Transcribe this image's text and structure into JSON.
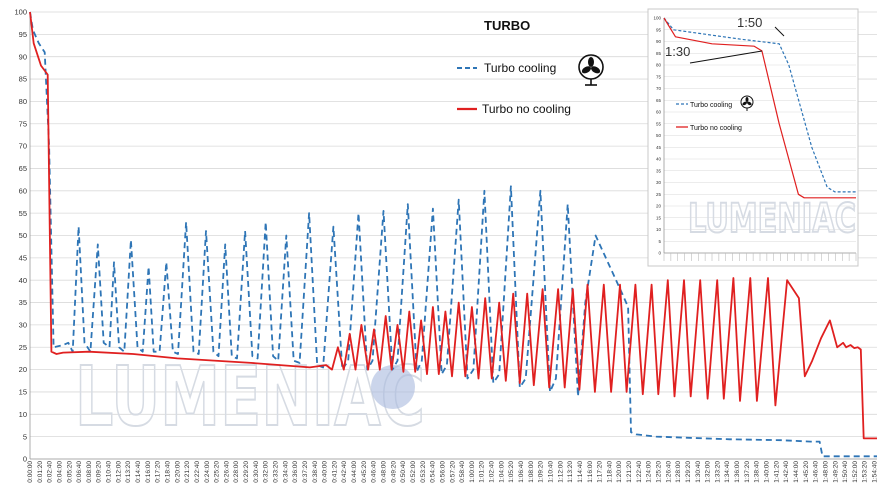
{
  "chart_data": [
    {
      "type": "line",
      "title": "TURBO",
      "ylim": [
        0,
        100
      ],
      "yticks": [
        0,
        5,
        10,
        15,
        20,
        25,
        30,
        35,
        40,
        45,
        50,
        55,
        60,
        65,
        70,
        75,
        80,
        85,
        90,
        95,
        100
      ],
      "xlim_minutes": [
        0,
        115
      ],
      "xticks": [
        "0:00:00",
        "0:01:20",
        "0:02:40",
        "0:04:00",
        "0:05:20",
        "0:06:40",
        "0:08:00",
        "0:09:20",
        "0:10:40",
        "0:12:00",
        "0:13:20",
        "0:14:40",
        "0:16:00",
        "0:17:20",
        "0:18:40",
        "0:20:00",
        "0:21:20",
        "0:22:40",
        "0:24:00",
        "0:25:20",
        "0:26:40",
        "0:28:00",
        "0:29:20",
        "0:30:40",
        "0:32:00",
        "0:33:20",
        "0:34:40",
        "0:36:00",
        "0:37:20",
        "0:38:40",
        "0:40:00",
        "0:41:20",
        "0:42:40",
        "0:44:00",
        "0:45:20",
        "0:46:40",
        "0:48:00",
        "0:49:20",
        "0:50:40",
        "0:52:00",
        "0:53:20",
        "0:54:40",
        "0:56:00",
        "0:57:20",
        "0:58:40",
        "1:00:00",
        "1:01:20",
        "1:02:40",
        "1:04:00",
        "1:05:20",
        "1:06:40",
        "1:08:00",
        "1:09:20",
        "1:10:40",
        "1:12:00",
        "1:13:20",
        "1:14:40",
        "1:16:00",
        "1:17:20",
        "1:18:40",
        "1:20:00",
        "1:21:20",
        "1:22:40",
        "1:24:00",
        "1:25:20",
        "1:26:40",
        "1:28:00",
        "1:29:20",
        "1:30:40",
        "1:32:00",
        "1:33:20",
        "1:34:40",
        "1:36:00",
        "1:37:20",
        "1:38:40",
        "1:40:00",
        "1:41:20",
        "1:42:40",
        "1:44:00",
        "1:45:20",
        "1:46:40",
        "1:48:00",
        "1:49:20",
        "1:50:40",
        "1:52:00",
        "1:53:20",
        "1:54:40"
      ],
      "legend": "top-center",
      "grid": true,
      "series": [
        {
          "name": "Turbo cooling",
          "style": "dashed",
          "color": "#2e75b6",
          "points": [
            [
              0,
              100
            ],
            [
              0.4,
              96
            ],
            [
              1.2,
              93
            ],
            [
              2,
              91
            ],
            [
              2.6,
              70
            ],
            [
              3.2,
              25
            ],
            [
              4.5,
              25.5
            ],
            [
              5.2,
              26
            ],
            [
              5.8,
              24
            ],
            [
              6.6,
              52
            ],
            [
              7.4,
              26
            ],
            [
              8.2,
              24
            ],
            [
              9.2,
              48
            ],
            [
              10,
              26
            ],
            [
              10.8,
              25
            ],
            [
              11.4,
              44
            ],
            [
              12.1,
              25
            ],
            [
              12.8,
              24
            ],
            [
              13.7,
              49
            ],
            [
              14.6,
              25
            ],
            [
              15.3,
              24
            ],
            [
              16.1,
              43
            ],
            [
              16.8,
              24
            ],
            [
              17.6,
              24
            ],
            [
              18.5,
              44
            ],
            [
              19.4,
              24
            ],
            [
              20.1,
              23.5
            ],
            [
              21.2,
              53
            ],
            [
              22.2,
              24
            ],
            [
              22.9,
              23.5
            ],
            [
              23.9,
              51
            ],
            [
              24.9,
              24
            ],
            [
              25.6,
              23
            ],
            [
              26.5,
              48
            ],
            [
              27.4,
              23
            ],
            [
              28.1,
              22.5
            ],
            [
              29.2,
              51
            ],
            [
              30.2,
              23
            ],
            [
              30.9,
              22.5
            ],
            [
              32,
              53
            ],
            [
              33,
              23
            ],
            [
              33.7,
              22
            ],
            [
              34.8,
              50
            ],
            [
              35.8,
              22
            ],
            [
              36.6,
              21.5
            ],
            [
              37.9,
              55
            ],
            [
              39,
              21
            ],
            [
              39.8,
              20.5
            ],
            [
              41.2,
              52
            ],
            [
              42.4,
              20
            ],
            [
              43.2,
              22
            ],
            [
              44.6,
              55
            ],
            [
              45.8,
              20
            ],
            [
              46.5,
              22
            ],
            [
              48,
              55.5
            ],
            [
              49.2,
              20
            ],
            [
              49.9,
              22
            ],
            [
              51.3,
              57
            ],
            [
              52.5,
              19.5
            ],
            [
              53.2,
              22
            ],
            [
              54.7,
              56
            ],
            [
              55.9,
              19
            ],
            [
              56.6,
              21
            ],
            [
              58.2,
              58
            ],
            [
              59.4,
              18
            ],
            [
              60.2,
              20
            ],
            [
              61.7,
              60
            ],
            [
              62.9,
              17
            ],
            [
              63.7,
              19
            ],
            [
              65.3,
              61
            ],
            [
              66.5,
              16
            ],
            [
              67.3,
              18
            ],
            [
              69.3,
              60
            ],
            [
              70.6,
              15
            ],
            [
              71.4,
              18
            ],
            [
              73,
              57
            ],
            [
              74.4,
              14
            ],
            [
              75.4,
              35
            ],
            [
              76.8,
              50
            ],
            [
              80.4,
              37
            ],
            [
              81.2,
              34
            ],
            [
              81.6,
              6
            ],
            [
              82.3,
              5.5
            ],
            [
              85,
              5
            ],
            [
              95,
              4.4
            ],
            [
              102,
              4.2
            ],
            [
              106,
              3.9
            ],
            [
              107.2,
              3.9
            ],
            [
              107.6,
              0.6
            ],
            [
              115,
              0.6
            ]
          ]
        },
        {
          "name": "Turbo no cooling",
          "style": "solid",
          "color": "#e02020",
          "points": [
            [
              0,
              100
            ],
            [
              0.5,
              93
            ],
            [
              1.5,
              88
            ],
            [
              2.4,
              86
            ],
            [
              2.9,
              24
            ],
            [
              3.6,
              23.5
            ],
            [
              4.5,
              23.8
            ],
            [
              8,
              24
            ],
            [
              14,
              23.5
            ],
            [
              20,
              22.5
            ],
            [
              30,
              21.5
            ],
            [
              38,
              20.5
            ],
            [
              40.2,
              21
            ],
            [
              41,
              20
            ],
            [
              41.8,
              25
            ],
            [
              42.6,
              20
            ],
            [
              43.4,
              28
            ],
            [
              44.2,
              20
            ],
            [
              45,
              30
            ],
            [
              45.9,
              20
            ],
            [
              46.7,
              29
            ],
            [
              47.5,
              20
            ],
            [
              48.3,
              32
            ],
            [
              49.1,
              20
            ],
            [
              49.9,
              30
            ],
            [
              50.7,
              19.5
            ],
            [
              51.5,
              33
            ],
            [
              52.3,
              19.5
            ],
            [
              53.1,
              31
            ],
            [
              53.9,
              19
            ],
            [
              54.7,
              34
            ],
            [
              55.5,
              19
            ],
            [
              56.4,
              33
            ],
            [
              57.3,
              18.5
            ],
            [
              58.2,
              35
            ],
            [
              59.1,
              18.5
            ],
            [
              60,
              34
            ],
            [
              60.9,
              18
            ],
            [
              61.8,
              36
            ],
            [
              62.7,
              18
            ],
            [
              63.7,
              35
            ],
            [
              64.6,
              17.5
            ],
            [
              65.6,
              37
            ],
            [
              66.5,
              17
            ],
            [
              67.5,
              37
            ],
            [
              68.4,
              16.5
            ],
            [
              69.6,
              38
            ],
            [
              70.5,
              16
            ],
            [
              71.7,
              38
            ],
            [
              72.6,
              16
            ],
            [
              73.7,
              38
            ],
            [
              74.6,
              15.5
            ],
            [
              75.7,
              39
            ],
            [
              76.7,
              15
            ],
            [
              77.9,
              39
            ],
            [
              78.9,
              15
            ],
            [
              80.1,
              39
            ],
            [
              81,
              15
            ],
            [
              82.2,
              39
            ],
            [
              83.2,
              14.5
            ],
            [
              84.4,
              39
            ],
            [
              85.3,
              14.5
            ],
            [
              86.6,
              40
            ],
            [
              87.5,
              14
            ],
            [
              88.8,
              40
            ],
            [
              89.7,
              14
            ],
            [
              91,
              40
            ],
            [
              92,
              13.5
            ],
            [
              93.3,
              40
            ],
            [
              94.2,
              13.5
            ],
            [
              95.5,
              40.5
            ],
            [
              96.4,
              13
            ],
            [
              97.8,
              40.5
            ],
            [
              98.7,
              13
            ],
            [
              100.2,
              40.5
            ],
            [
              101.2,
              12
            ],
            [
              102.8,
              40
            ],
            [
              104.4,
              36
            ],
            [
              105.2,
              18.5
            ],
            [
              106.2,
              22
            ],
            [
              107.4,
              27
            ],
            [
              108.6,
              31
            ],
            [
              109.6,
              25
            ],
            [
              110.4,
              26
            ],
            [
              110.8,
              25
            ],
            [
              111.4,
              25.5
            ],
            [
              111.9,
              24.8
            ],
            [
              112.4,
              25
            ],
            [
              112.8,
              24.5
            ],
            [
              113.2,
              4.6
            ],
            [
              115,
              4.6
            ]
          ]
        }
      ]
    },
    {
      "type": "line",
      "inset": true,
      "ylim": [
        0,
        100
      ],
      "yticks": [
        0,
        5,
        10,
        15,
        20,
        25,
        30,
        35,
        40,
        45,
        50,
        55,
        60,
        65,
        70,
        75,
        80,
        85,
        90,
        95,
        100
      ],
      "annotations": [
        "1:50",
        "1:30"
      ],
      "series": [
        {
          "name": "Turbo cooling",
          "style": "dashed",
          "color": "#2e75b6",
          "points": [
            [
              0,
              100
            ],
            [
              5,
              95
            ],
            [
              40,
              91
            ],
            [
              60,
              89
            ],
            [
              65,
              80
            ],
            [
              77,
              45
            ],
            [
              85,
              28
            ],
            [
              89,
              26
            ],
            [
              100,
              26
            ]
          ]
        },
        {
          "name": "Turbo no cooling",
          "style": "solid",
          "color": "#e02020",
          "points": [
            [
              0,
              100
            ],
            [
              6,
              92
            ],
            [
              25,
              89
            ],
            [
              47,
              88
            ],
            [
              51,
              86
            ],
            [
              60,
              55
            ],
            [
              70,
              25
            ],
            [
              73,
              23.5
            ],
            [
              100,
              23.5
            ]
          ]
        }
      ]
    }
  ],
  "watermark": "LUMENIAC"
}
